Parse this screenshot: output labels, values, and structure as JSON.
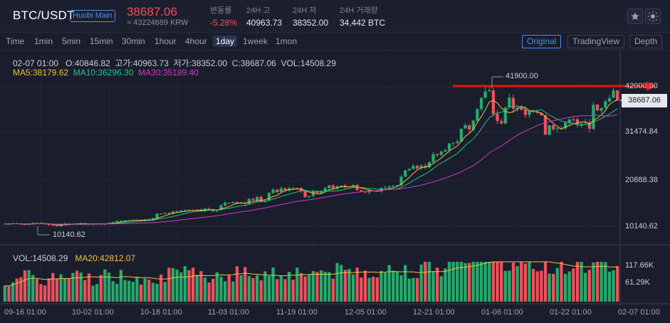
{
  "header": {
    "pair": "BTC/USDT",
    "market_badge": "Huobi Main",
    "last_price": "38687.06",
    "krw_price": "≈ 43224689 KRW",
    "stats": [
      {
        "label": "변동률",
        "value": "-5.28%"
      },
      {
        "label": "24H 고",
        "value": "40963.73"
      },
      {
        "label": "24H 저",
        "value": "38352.00"
      },
      {
        "label": "24H 거래량",
        "value": "34,442 BTC"
      }
    ],
    "favorite_icon": "star-icon",
    "theme_icon": "sun-icon"
  },
  "toolbar": {
    "timeframes": [
      "Time",
      "1min",
      "5min",
      "15min",
      "30min",
      "1hour",
      "4hour",
      "1day",
      "1week",
      "1mon"
    ],
    "active_timeframe": "1day",
    "views": [
      "Original",
      "TradingView",
      "Depth"
    ],
    "active_view": "Original"
  },
  "legend": {
    "date": "02-07 01:00",
    "open": "O:40846.82",
    "high": "고가:40963.73",
    "low": "저가:38352.00",
    "close": "C:38687.06",
    "vol": "VOL:14508.29",
    "ma5": "MA5:38179.62",
    "ma10": "MA10:36296.30",
    "ma30": "MA30:35189.40",
    "vol_label": "VOL:14508.29",
    "ma20_vol": "MA20:42812.07"
  },
  "price_axis": {
    "labels": [
      "42000.00",
      "31474.84",
      "20888.38",
      "10140.62"
    ],
    "current_price": "38687.06",
    "high_callout": "41900.00",
    "low_callout": "10140.62"
  },
  "volume_axis": {
    "labels": [
      "117.66K",
      "61.29K"
    ]
  },
  "x_axis": {
    "labels": [
      "09-16 01:00",
      "10-02 01:00",
      "10-18 01:00",
      "11-03 01:00",
      "11-19 01:00",
      "12-05 01:00",
      "12-21 01:00",
      "01-06 01:00",
      "01-22 01:00",
      "02-07 01:00"
    ]
  },
  "colors": {
    "up": "#26a96c",
    "down": "#f0505b",
    "ma5": "#f0c040",
    "ma10": "#26c281",
    "ma30": "#d238c8",
    "annotation": "#e8140c",
    "accent": "#4d8ef0"
  },
  "chart_data": {
    "type": "candlestick",
    "title": "BTC/USDT 1day",
    "ylim": [
      8000,
      44000
    ],
    "closes": [
      10700,
      10650,
      10780,
      10690,
      10580,
      10520,
      10640,
      10900,
      10890,
      10710,
      10600,
      10450,
      10320,
      10140,
      10690,
      10725,
      10700,
      10740,
      10650,
      10780,
      10690,
      10560,
      10690,
      10700,
      10600,
      10700,
      10920,
      11050,
      11360,
      11380,
      11420,
      11500,
      11510,
      11590,
      11320,
      11670,
      11500,
      11980,
      12990,
      12920,
      13100,
      13030,
      13470,
      13550,
      13700,
      13780,
      13760,
      13650,
      13900,
      13580,
      14150,
      14020,
      13560,
      13780,
      14850,
      15440,
      15320,
      15610,
      15330,
      15480,
      15200,
      16300,
      15960,
      16730,
      15700,
      15960,
      17700,
      18420,
      17850,
      18720,
      18250,
      18750,
      18690,
      18730,
      18080,
      16720,
      16970,
      18000,
      17650,
      18130,
      18760,
      19420,
      18640,
      19170,
      19310,
      18970,
      19150,
      19420,
      18300,
      18060,
      17780,
      18250,
      18210,
      18040,
      18800,
      18890,
      19160,
      19270,
      19440,
      21340,
      22800,
      23100,
      23810,
      23230,
      23860,
      23460,
      24660,
      26430,
      26250,
      27030,
      27370,
      28880,
      28990,
      29330,
      32180,
      33000,
      32010,
      34030,
      36620,
      39180,
      40630,
      40880,
      35520,
      33950,
      33400,
      36970,
      39200,
      36710,
      36960,
      36490,
      35300,
      36220,
      36160,
      35800,
      35250,
      30850,
      32980,
      32080,
      32280,
      32280,
      33580,
      34280,
      34310,
      33100,
      33400,
      33560,
      32180,
      37600,
      36340,
      36880,
      38400,
      39120,
      40846,
      38687
    ]
  }
}
